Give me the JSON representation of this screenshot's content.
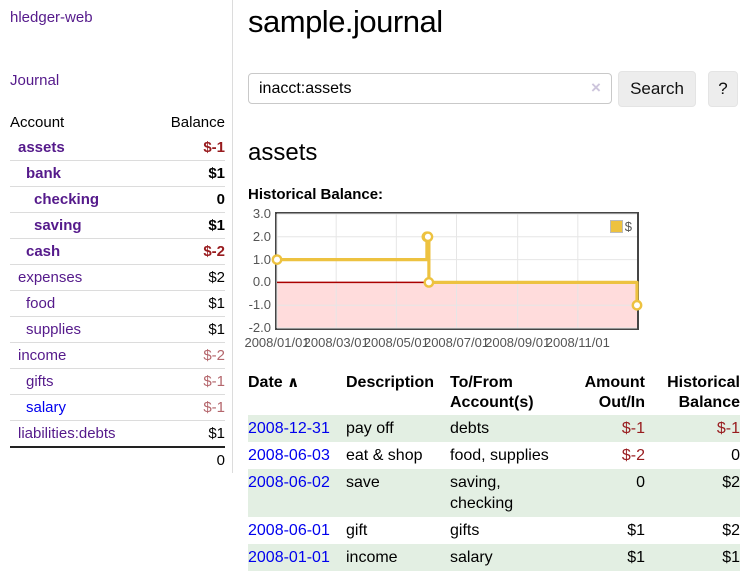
{
  "sidebar": {
    "app_title": "hledger-web",
    "journal_link": "Journal",
    "accounts_table": {
      "col_account": "Account",
      "col_balance": "Balance",
      "accounts": [
        {
          "name": "assets",
          "indent": 1,
          "bold": true,
          "link_color": "purple",
          "balance": "$-1",
          "balance_class": "neg-strong"
        },
        {
          "name": "bank",
          "indent": 2,
          "bold": true,
          "link_color": "purple",
          "balance": "$1",
          "balance_class": "pos"
        },
        {
          "name": "checking",
          "indent": 3,
          "bold": true,
          "link_color": "purple",
          "balance": "0",
          "balance_class": "pos"
        },
        {
          "name": "saving",
          "indent": 3,
          "bold": true,
          "link_color": "purple",
          "balance": "$1",
          "balance_class": "pos"
        },
        {
          "name": "cash",
          "indent": 2,
          "bold": true,
          "link_color": "purple",
          "balance": "$-2",
          "balance_class": "neg-strong"
        },
        {
          "name": "expenses",
          "indent": 1,
          "bold": false,
          "link_color": "purple",
          "balance": "$2",
          "balance_class": "pos"
        },
        {
          "name": "food",
          "indent": 2,
          "bold": false,
          "link_color": "purple",
          "balance": "$1",
          "balance_class": "pos"
        },
        {
          "name": "supplies",
          "indent": 2,
          "bold": false,
          "link_color": "purple",
          "balance": "$1",
          "balance_class": "pos"
        },
        {
          "name": "income",
          "indent": 1,
          "bold": false,
          "link_color": "purple",
          "balance": "$-2",
          "balance_class": "neg-muted"
        },
        {
          "name": "gifts",
          "indent": 2,
          "bold": false,
          "link_color": "purple",
          "balance": "$-1",
          "balance_class": "neg-muted"
        },
        {
          "name": "salary",
          "indent": 2,
          "bold": false,
          "link_color": "blue",
          "balance": "$-1",
          "balance_class": "neg-muted"
        },
        {
          "name": "liabilities:debts",
          "indent": 1,
          "bold": false,
          "link_color": "purple",
          "balance": "$1",
          "balance_class": "pos"
        }
      ],
      "total": "0"
    }
  },
  "header": {
    "title": "sample.journal"
  },
  "search": {
    "value": "inacct:assets",
    "clear_icon": "×",
    "button_label": "Search",
    "help_label": "?"
  },
  "account_page": {
    "title": "assets",
    "chart_label": "Historical Balance:"
  },
  "chart_data": {
    "type": "line",
    "step": true,
    "title": "Historical Balance:",
    "series": [
      {
        "name": "$",
        "color": "#edc240",
        "points": [
          [
            "2008-01-01",
            1
          ],
          [
            "2008-06-01",
            2
          ],
          [
            "2008-06-02",
            2
          ],
          [
            "2008-06-03",
            0
          ],
          [
            "2008-12-31",
            -1
          ]
        ]
      }
    ],
    "xlim": [
      "2008-01-01",
      "2008-12-31"
    ],
    "ylim": [
      -2,
      3
    ],
    "x_ticks": [
      {
        "date": "2008-01-01",
        "label": "2008/01/01"
      },
      {
        "date": "2008-03-01",
        "label": "2008/03/01"
      },
      {
        "date": "2008-05-01",
        "label": "2008/05/01"
      },
      {
        "date": "2008-07-01",
        "label": "2008/07/01"
      },
      {
        "date": "2008-09-01",
        "label": "2008/09/01"
      },
      {
        "date": "2008-11-01",
        "label": "2008/11/01"
      }
    ],
    "y_ticks": [
      "3.0",
      "2.0",
      "1.0",
      "0.0",
      "-1.0",
      "-2.0"
    ],
    "legend": {
      "label": "$",
      "position": "top-right"
    },
    "grid": true,
    "grid_color": "#e6e6e6",
    "border_color": "#454545",
    "negative_region_fill": "#ffdcdc",
    "zero_line_color": "#aa0000"
  },
  "register": {
    "columns": {
      "date": "Date",
      "sort_icon": "∧",
      "description": "Description",
      "accounts": "To/From Account(s)",
      "amount": "Amount Out/In",
      "balance": "Historical Balance"
    },
    "rows": [
      {
        "date": "2008-12-31",
        "description": "pay off",
        "accounts": "debts",
        "amount": "$-1",
        "amount_class": "neg",
        "balance": "$-1",
        "balance_class": "neg",
        "shaded": true
      },
      {
        "date": "2008-06-03",
        "description": "eat & shop",
        "accounts": "food, supplies",
        "amount": "$-2",
        "amount_class": "neg",
        "balance": "0",
        "balance_class": "pos",
        "shaded": false
      },
      {
        "date": "2008-06-02",
        "description": "save",
        "accounts": "saving, checking",
        "amount": "0",
        "amount_class": "pos",
        "balance": "$2",
        "balance_class": "pos",
        "shaded": true
      },
      {
        "date": "2008-06-01",
        "description": "gift",
        "accounts": "gifts",
        "amount": "$1",
        "amount_class": "pos",
        "balance": "$2",
        "balance_class": "pos",
        "shaded": false
      },
      {
        "date": "2008-01-01",
        "description": "income",
        "accounts": "salary",
        "amount": "$1",
        "amount_class": "pos",
        "balance": "$1",
        "balance_class": "pos",
        "shaded": true
      }
    ]
  },
  "colors": {
    "link_purple": "#551a8b",
    "link_blue": "#0000ee",
    "negative_strong": "#981b1e",
    "negative_muted": "#b4666c",
    "row_shade_green": "#e3efe3",
    "series_gold": "#edc240",
    "negative_fill_pink": "#ffdcdc",
    "zero_line_red": "#aa0000"
  }
}
